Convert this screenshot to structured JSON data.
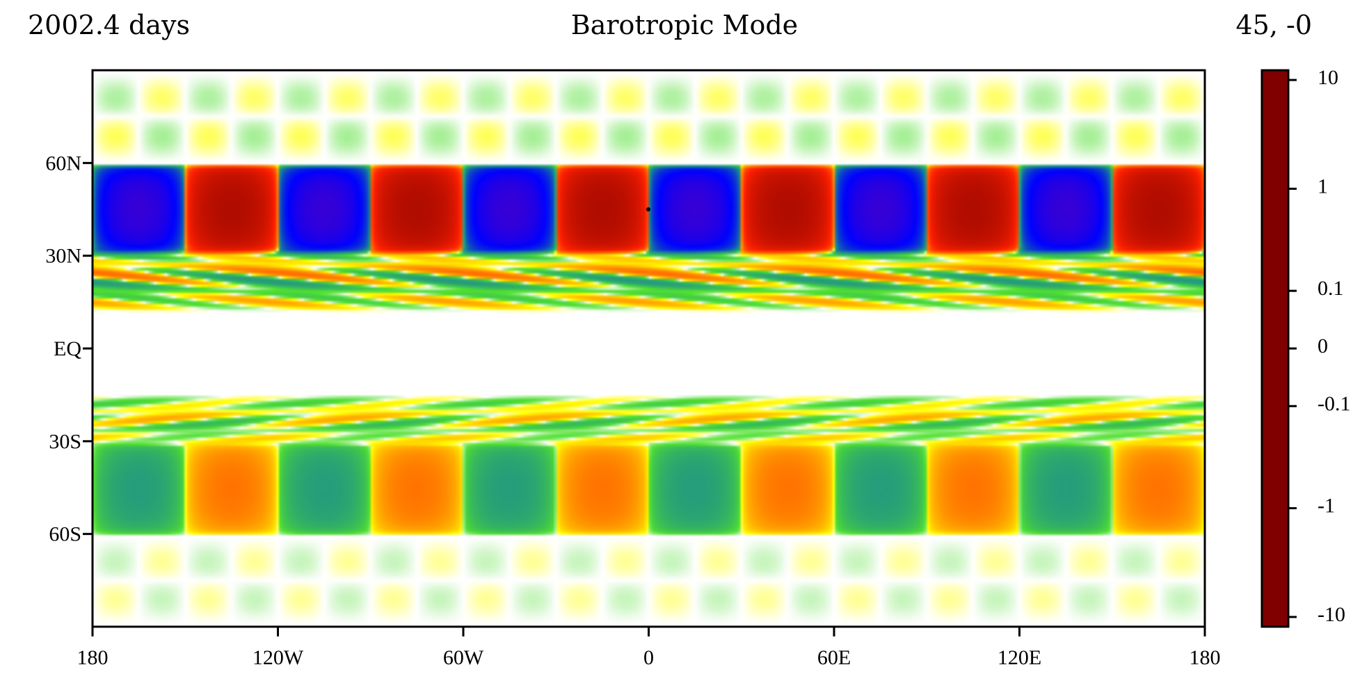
{
  "header": {
    "left": "2002.4 days",
    "center": "Barotropic Mode",
    "right": "45, -0"
  },
  "chart_data": {
    "type": "heatmap",
    "title": "Barotropic Mode",
    "time_label": "2002.4 days",
    "point_label": "45, -0",
    "x_axis": {
      "range": [
        -180,
        180
      ],
      "ticks": [
        {
          "value": -180,
          "label": "180"
        },
        {
          "value": -120,
          "label": "120W"
        },
        {
          "value": -60,
          "label": "60W"
        },
        {
          "value": 0,
          "label": "0"
        },
        {
          "value": 60,
          "label": "60E"
        },
        {
          "value": 120,
          "label": "120E"
        },
        {
          "value": 180,
          "label": "180"
        }
      ]
    },
    "y_axis": {
      "range": [
        -90,
        90
      ],
      "ticks": [
        {
          "value": 60,
          "label": "60N"
        },
        {
          "value": 30,
          "label": "30N"
        },
        {
          "value": 0,
          "label": "EQ"
        },
        {
          "value": -30,
          "label": "30S"
        },
        {
          "value": -60,
          "label": "60S"
        }
      ]
    },
    "colorbar": {
      "scale": "symmetric-log",
      "ticks": [
        {
          "value": 10,
          "label": "10"
        },
        {
          "value": 1,
          "label": "1"
        },
        {
          "value": 0.1,
          "label": "0.1"
        },
        {
          "value": 0,
          "label": "0"
        },
        {
          "value": -0.1,
          "label": "-0.1"
        },
        {
          "value": -1,
          "label": "-1"
        },
        {
          "value": -10,
          "label": "-10"
        }
      ],
      "colors": [
        "#800000",
        "#ff2000",
        "#ffa000",
        "#ffff00",
        "#ffffff",
        "#50e030",
        "#1a8a90",
        "#0000ff",
        "#8000a0"
      ]
    },
    "pattern": {
      "zonal_wavenumber": 6,
      "bands": [
        {
          "lat_min": 33,
          "lat_max": 57,
          "amplitude": 5,
          "shape": "cells"
        },
        {
          "lat_min": 14,
          "lat_max": 32,
          "amplitude": 0.6,
          "shape": "tilted"
        },
        {
          "lat_min": -30,
          "lat_max": -17,
          "amplitude": 0.3,
          "shape": "tilted"
        },
        {
          "lat_min": -58,
          "lat_max": -33,
          "amplitude": 0.6,
          "shape": "cells"
        },
        {
          "lat_min": 60,
          "lat_max": 88,
          "amplitude": 0.05,
          "shape": "stripes"
        },
        {
          "lat_min": -88,
          "lat_max": -62,
          "amplitude": 0.03,
          "shape": "stripes"
        }
      ]
    },
    "grid": false
  }
}
